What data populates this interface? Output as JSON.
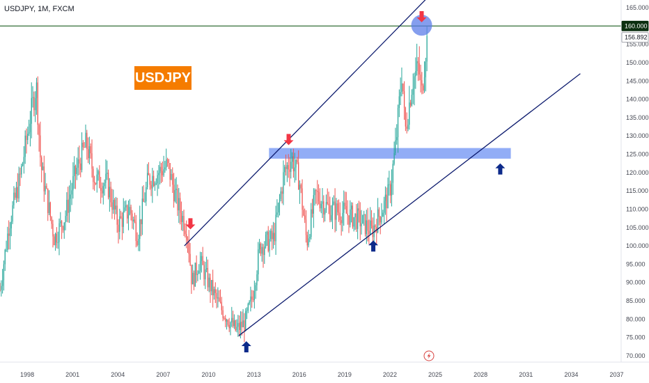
{
  "header": {
    "symbol_label": "USDJPY, 1M, FXCM",
    "badge_label": "USDJPY"
  },
  "colors": {
    "up": "#26a69a",
    "down": "#ef5350",
    "channel": "#0d1b6e",
    "resistance": "#1b5e20",
    "zone": "#7f9ff5",
    "target": "#5c7ee8",
    "red_arrow": "#f23645",
    "blue_arrow": "#0d2a8a",
    "badge": "#f57c00"
  },
  "price_tags": [
    {
      "label": "160.000",
      "value": 160.0,
      "style": "resistance"
    },
    {
      "label": "156.892",
      "value": 156.892,
      "style": "last"
    }
  ],
  "icons": {
    "replay": "lightning-icon",
    "sell_signal": "down-arrow-icon",
    "buy_signal": "up-arrow-icon"
  },
  "chart_data": {
    "type": "candlestick",
    "title": "USDJPY, 1M, FXCM",
    "xlabel": "",
    "ylabel": "",
    "ylim": [
      70,
      165
    ],
    "xlim": [
      1996.2,
      2037.3
    ],
    "y_ticks": [
      "165.000",
      "155.000",
      "150.000",
      "145.000",
      "140.000",
      "135.000",
      "130.000",
      "125.000",
      "120.000",
      "115.000",
      "110.000",
      "105.000",
      "100.000",
      "95.000",
      "90.000",
      "85.000",
      "80.000",
      "75.000",
      "70.000"
    ],
    "x_ticks": [
      "1998",
      "2001",
      "2004",
      "2007",
      "2010",
      "2013",
      "2016",
      "2019",
      "2022",
      "2025",
      "2028",
      "2031",
      "2034",
      "2037"
    ],
    "grid": false,
    "price_path": [
      {
        "x": 1996.2,
        "y": 88
      },
      {
        "x": 1996.8,
        "y": 106
      },
      {
        "x": 1997.5,
        "y": 118
      },
      {
        "x": 1998.2,
        "y": 135
      },
      {
        "x": 1998.6,
        "y": 144
      },
      {
        "x": 1998.9,
        "y": 122
      },
      {
        "x": 1999.8,
        "y": 102
      },
      {
        "x": 2000.5,
        "y": 108
      },
      {
        "x": 2001.2,
        "y": 120
      },
      {
        "x": 2001.9,
        "y": 128
      },
      {
        "x": 2002.5,
        "y": 118
      },
      {
        "x": 2003.3,
        "y": 117
      },
      {
        "x": 2004.0,
        "y": 106
      },
      {
        "x": 2004.8,
        "y": 110
      },
      {
        "x": 2005.3,
        "y": 103
      },
      {
        "x": 2006.0,
        "y": 118
      },
      {
        "x": 2007.3,
        "y": 122
      },
      {
        "x": 2007.9,
        "y": 112
      },
      {
        "x": 2008.6,
        "y": 104
      },
      {
        "x": 2008.9,
        "y": 90
      },
      {
        "x": 2009.4,
        "y": 96
      },
      {
        "x": 2010.0,
        "y": 90
      },
      {
        "x": 2010.8,
        "y": 83
      },
      {
        "x": 2011.3,
        "y": 80
      },
      {
        "x": 2011.8,
        "y": 77
      },
      {
        "x": 2012.4,
        "y": 79
      },
      {
        "x": 2012.9,
        "y": 86
      },
      {
        "x": 2013.4,
        "y": 100
      },
      {
        "x": 2014.3,
        "y": 102
      },
      {
        "x": 2015.0,
        "y": 120
      },
      {
        "x": 2015.5,
        "y": 124
      },
      {
        "x": 2016.0,
        "y": 118
      },
      {
        "x": 2016.5,
        "y": 101
      },
      {
        "x": 2017.1,
        "y": 114
      },
      {
        "x": 2018.0,
        "y": 110
      },
      {
        "x": 2019.0,
        "y": 109
      },
      {
        "x": 2020.0,
        "y": 107
      },
      {
        "x": 2020.8,
        "y": 104
      },
      {
        "x": 2021.5,
        "y": 110
      },
      {
        "x": 2022.0,
        "y": 115
      },
      {
        "x": 2022.4,
        "y": 128
      },
      {
        "x": 2022.8,
        "y": 148
      },
      {
        "x": 2023.0,
        "y": 131
      },
      {
        "x": 2023.5,
        "y": 145
      },
      {
        "x": 2023.9,
        "y": 149
      },
      {
        "x": 2024.1,
        "y": 141
      },
      {
        "x": 2024.4,
        "y": 155
      },
      {
        "x": 2024.5,
        "y": 156.892
      }
    ],
    "annotations": {
      "horizontal_line": {
        "y": 160.0
      },
      "upper_channel": {
        "x1": 2008.4,
        "y1": 100,
        "x2": 2025.5,
        "y2": 172
      },
      "lower_channel": {
        "x1": 2012.0,
        "y1": 75.5,
        "x2": 2034.6,
        "y2": 147
      },
      "zone": {
        "x1": 2014.0,
        "x2": 2030.0,
        "y1": 123.8,
        "y2": 126.7
      },
      "target_circle": {
        "x": 2024.1,
        "y": 160.2
      },
      "down_arrows": [
        {
          "x": 2008.8,
          "y": 104.5
        },
        {
          "x": 2015.3,
          "y": 127.5
        },
        {
          "x": 2024.1,
          "y": 161
        }
      ],
      "up_arrows": [
        {
          "x": 2012.5,
          "y": 74
        },
        {
          "x": 2020.9,
          "y": 101.5
        },
        {
          "x": 2029.3,
          "y": 122.5
        }
      ]
    }
  }
}
